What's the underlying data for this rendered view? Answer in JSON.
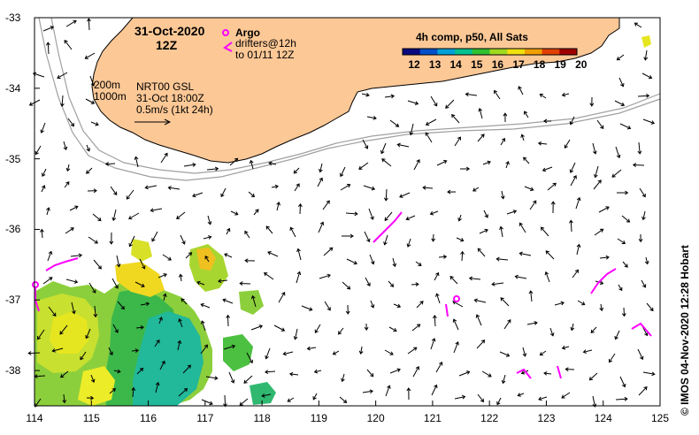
{
  "title": {
    "date": "31-Oct-2020",
    "hour": "12Z"
  },
  "legend": {
    "argo_label": "Argo",
    "drifters_line1": "drifters@12h",
    "drifters_line2": "to 01/11 12Z",
    "argo_color": "#ff00ff",
    "drifter_color": "#ff00ff"
  },
  "contours": {
    "depth_200": "200m",
    "depth_1000": "1000m"
  },
  "current_info": {
    "product": "NRT00 GSL",
    "time": "31-Oct 18:00Z",
    "scale": "0.5m/s (1kt 24h)"
  },
  "colorbar": {
    "title": "4h comp, p50, All Sats",
    "ticks": [
      "12",
      "13",
      "14",
      "15",
      "16",
      "17",
      "18",
      "19",
      "20"
    ],
    "colors": [
      "#0a0a80",
      "#0050c8",
      "#00a0d8",
      "#00c090",
      "#30c030",
      "#a0d820",
      "#f0e010",
      "#f0a000",
      "#e04000",
      "#a00000"
    ]
  },
  "axes": {
    "x_ticks": [
      "114",
      "115",
      "116",
      "117",
      "118",
      "119",
      "120",
      "121",
      "122",
      "123",
      "124",
      "125"
    ],
    "y_ticks": [
      "-33",
      "-34",
      "-35",
      "-36",
      "-37",
      "-38"
    ],
    "xlim": [
      114,
      125
    ],
    "ylim": [
      -38.5,
      -33
    ]
  },
  "credit": "©  IMOS 04-Nov-2020 12:28 Hobart",
  "colors": {
    "land": "#fcc896",
    "vector": "#000000",
    "contour": "#a0a0a0"
  }
}
